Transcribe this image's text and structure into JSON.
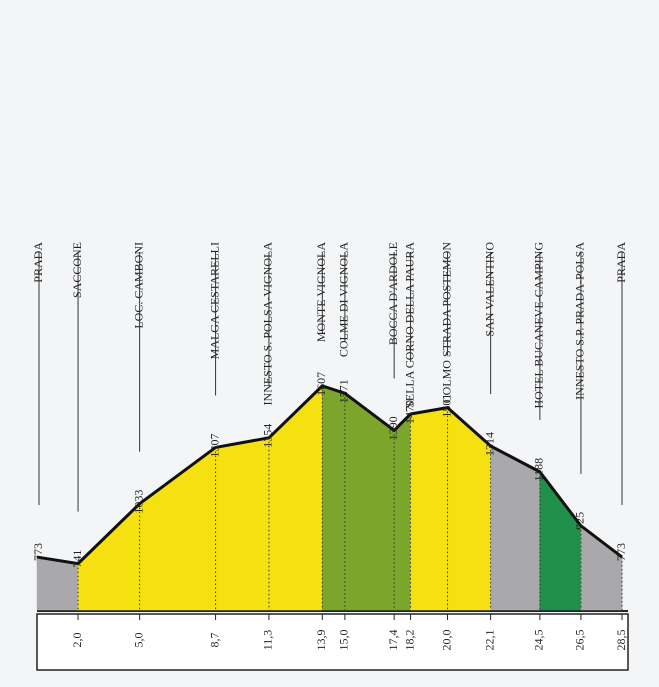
{
  "chart_data": {
    "type": "area",
    "labels": [
      "PRADA",
      "SACCONE",
      "LOC. CAMBONI",
      "MALGA CESTARELLI",
      "INNESTO S. POLSA-VIGNOLA",
      "MONTE VIGNOLA",
      "COLME DI VIGNOLA",
      "BOCCA D'ARDOLE",
      "SELLA CORNO DELLA PAURA",
      "COLMO STRADA POSTEMON",
      "SAN VALENTINO",
      "HOTEL BUCANEVE-CAMPING",
      "INNESTO S.P. PRADA-POLSA",
      "PRADA"
    ],
    "x": [
      0,
      2.0,
      5.0,
      8.7,
      11.3,
      13.9,
      15.0,
      17.4,
      18.2,
      20.0,
      22.1,
      24.5,
      26.5,
      28.5
    ],
    "values": [
      773,
      741,
      1033,
      1307,
      1354,
      1607,
      1571,
      1390,
      1470,
      1501,
      1314,
      1188,
      925,
      773
    ],
    "xticks": [
      {
        "value": 2.0,
        "label": "2,0"
      },
      {
        "value": 5.0,
        "label": "5,0"
      },
      {
        "value": 8.7,
        "label": "8,7"
      },
      {
        "value": 11.3,
        "label": "11,3"
      },
      {
        "value": 13.9,
        "label": "13,9"
      },
      {
        "value": 15.0,
        "label": "15,0"
      },
      {
        "value": 17.4,
        "label": "17,4"
      },
      {
        "value": 18.2,
        "label": "18,2"
      },
      {
        "value": 20.0,
        "label": "20,0"
      },
      {
        "value": 22.1,
        "label": "22,1"
      },
      {
        "value": 24.5,
        "label": "24,5"
      },
      {
        "value": 26.5,
        "label": "26,5"
      },
      {
        "value": 28.5,
        "label": "28,5"
      }
    ],
    "xlim": [
      0,
      28.5
    ],
    "ylim": [
      515,
      1850
    ],
    "segment_colors": [
      "#a9a9ab",
      "#f5e10f",
      "#f5e10f",
      "#f5e10f",
      "#f5e10f",
      "#7ca52c",
      "#7ca52c",
      "#7ca52c",
      "#f5e10f",
      "#f5e10f",
      "#a9a9ab",
      "#1f8f4a",
      "#a9a9ab"
    ]
  }
}
